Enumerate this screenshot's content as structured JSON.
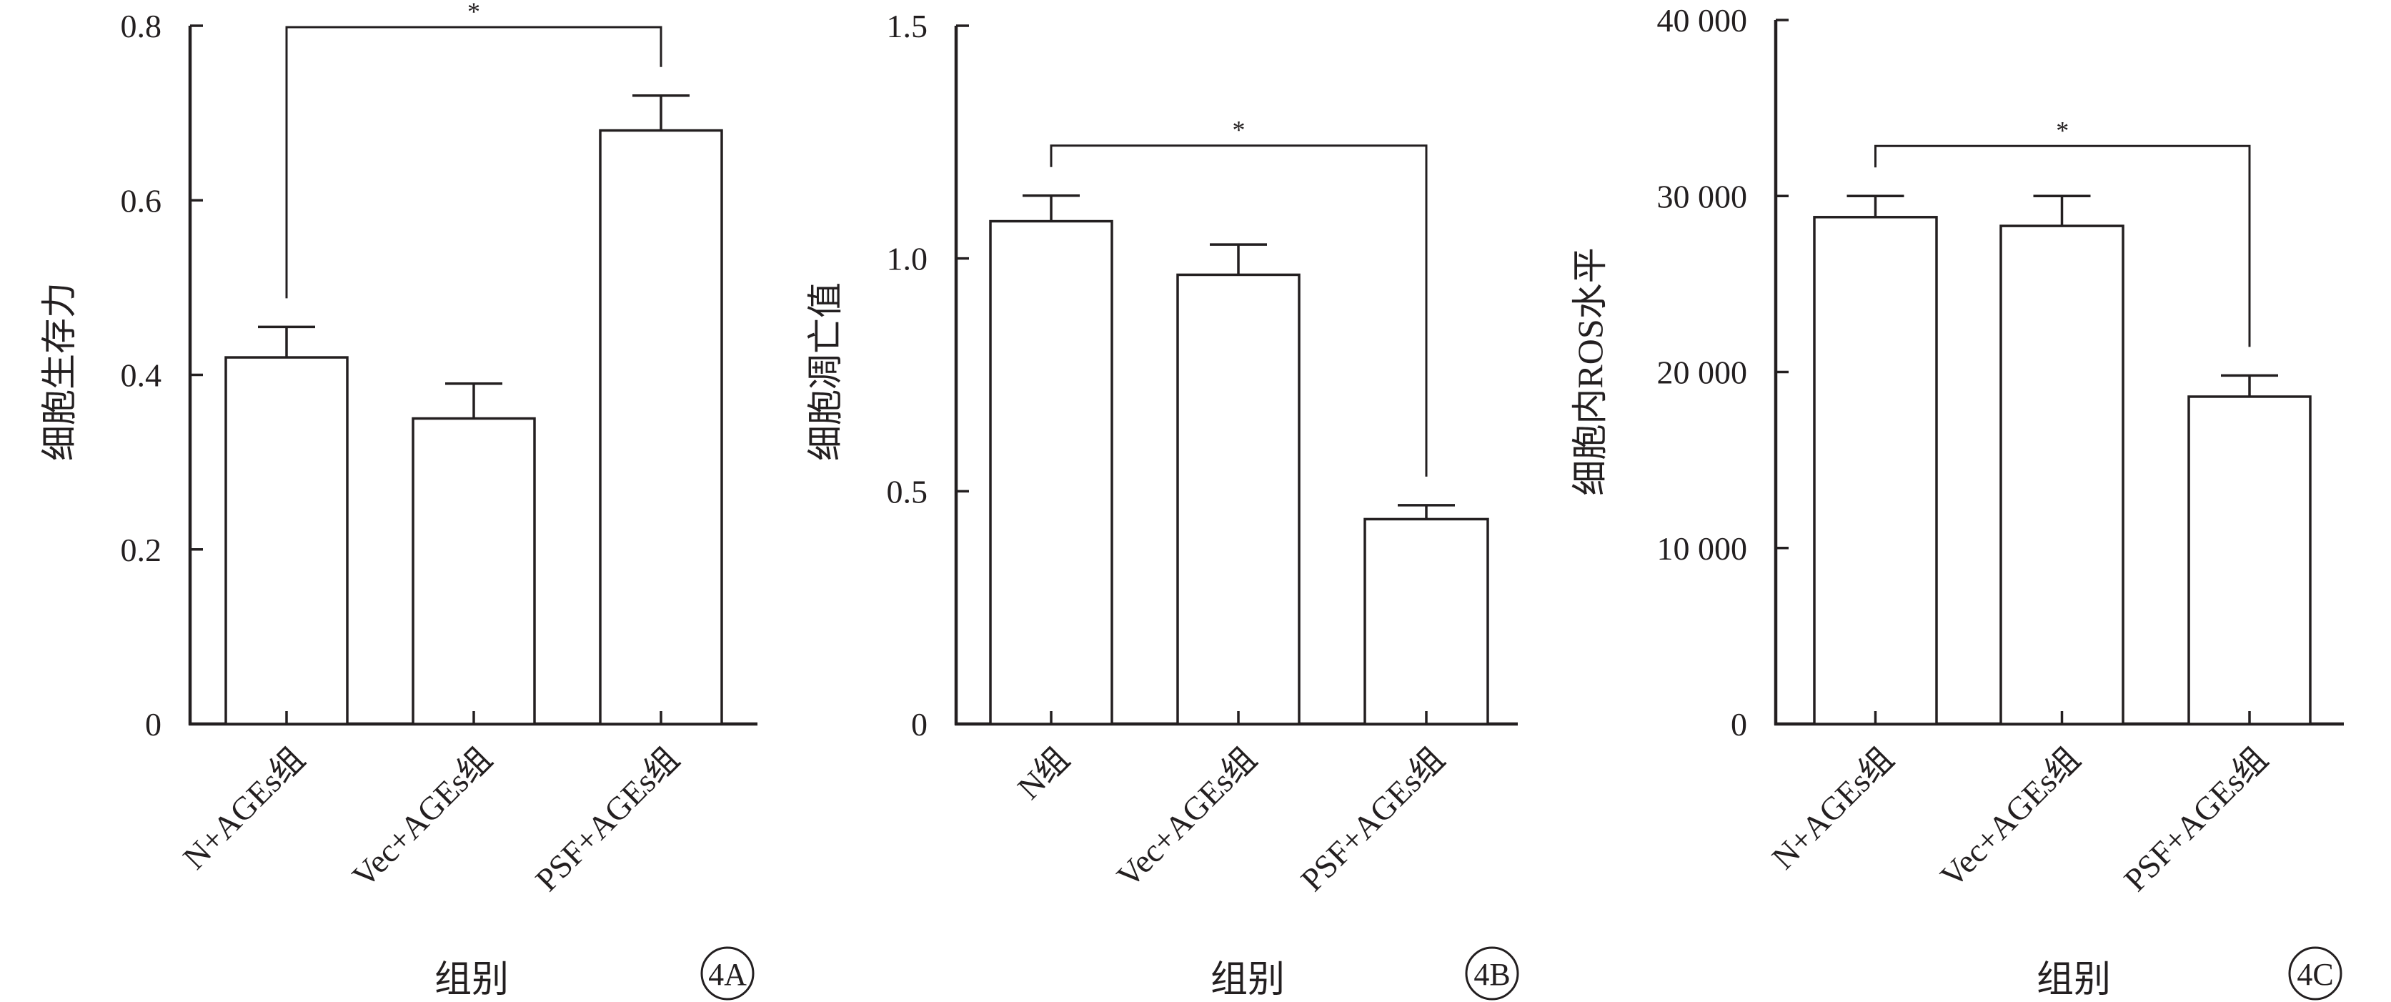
{
  "chart_data": [
    {
      "type": "bar",
      "panel_label": "4A",
      "categories": [
        "N+AGEs组",
        "Vec+AGEs组",
        "PSF+AGEs组"
      ],
      "values": [
        0.42,
        0.35,
        0.68
      ],
      "errors": [
        0.035,
        0.04,
        0.04
      ],
      "ylabel": "细胞生存力",
      "xlabel": "组别",
      "ylim": [
        0,
        0.8
      ],
      "yticks": [
        0,
        0.2,
        0.4,
        0.6,
        0.8
      ],
      "ytick_labels": [
        "0",
        "0.2",
        "0.4",
        "0.6",
        "0.8"
      ],
      "significance": {
        "from": 0,
        "to": 2,
        "label": "*"
      }
    },
    {
      "type": "bar",
      "panel_label": "4B",
      "categories": [
        "N组",
        "Vec+AGEs组",
        "PSF+AGEs组"
      ],
      "values": [
        1.08,
        0.965,
        0.44
      ],
      "errors": [
        0.055,
        0.065,
        0.03
      ],
      "ylabel": "细胞凋亡值",
      "xlabel": "组别",
      "ylim": [
        0,
        1.5
      ],
      "yticks": [
        0,
        0.5,
        1.0,
        1.5
      ],
      "ytick_labels": [
        "0",
        "0.5",
        "1.0",
        "1.5"
      ],
      "significance": {
        "from": 0,
        "to": 2,
        "label": "*"
      }
    },
    {
      "type": "bar",
      "panel_label": "4C",
      "categories": [
        "N+AGEs组",
        "Vec+AGEs组",
        "PSF+AGEs组"
      ],
      "values": [
        28800,
        28300,
        18600
      ],
      "errors": [
        1200,
        1700,
        1200
      ],
      "ylabel": "细胞内ROS水平",
      "xlabel": "组别",
      "ylim": [
        0,
        40000
      ],
      "yticks": [
        0,
        10000,
        20000,
        30000,
        40000
      ],
      "ytick_labels": [
        "0",
        "10 000",
        "20 000",
        "30 000",
        "40 000"
      ],
      "significance": {
        "from": 0,
        "to": 2,
        "label": "*"
      }
    }
  ]
}
